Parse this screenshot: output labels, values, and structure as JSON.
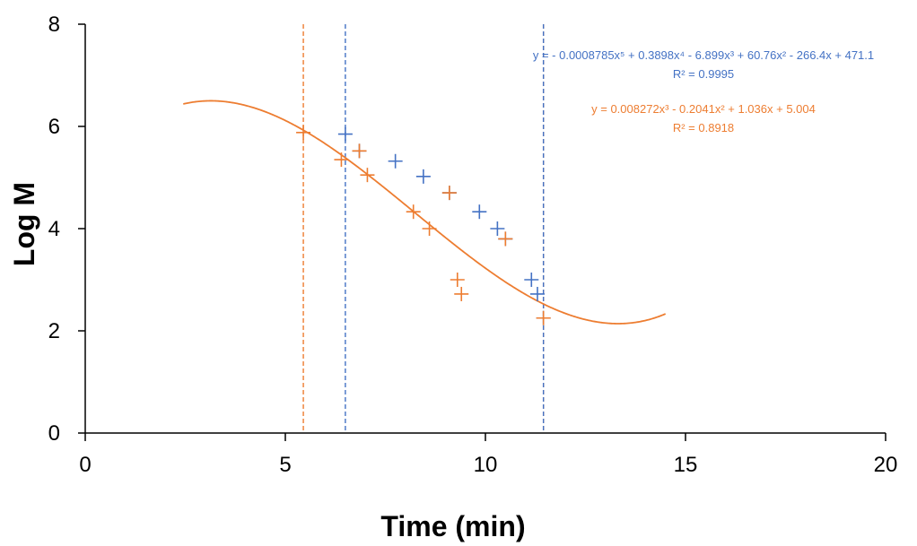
{
  "chart_data": {
    "type": "scatter",
    "xlabel": "Time (min)",
    "ylabel": "Log M",
    "xlim": [
      0,
      20
    ],
    "ylim": [
      0,
      8
    ],
    "xticks": [
      "0",
      "5",
      "10",
      "15",
      "20"
    ],
    "yticks": [
      "0",
      "2",
      "4",
      "6",
      "8"
    ],
    "grid": false,
    "series": [
      {
        "color": "#4472c4",
        "marker": "+",
        "x": [
          6.5,
          6.85,
          7.75,
          8.45,
          9.1,
          9.85,
          10.3,
          10.5,
          11.15,
          11.3,
          11.45
        ],
        "y": [
          5.85,
          5.52,
          5.32,
          5.02,
          4.7,
          4.33,
          4.0,
          3.8,
          3.0,
          2.72,
          2.25
        ],
        "trendline": {
          "kind": "polynomial",
          "coefficients": [
            -0.0008785,
            0.3898,
            -6.899,
            60.76,
            -266.4,
            471.1
          ],
          "equation": "y = - 0.0008785x⁵ + 0.3898x⁴ - 6.899x³ + 60.76x² - 266.4x + 471.1",
          "r2": "R² = 0.9995"
        }
      },
      {
        "color": "#ed7d31",
        "marker": "+",
        "x": [
          5.45,
          6.4,
          6.85,
          7.05,
          8.2,
          8.6,
          9.1,
          9.3,
          9.4,
          10.5,
          11.45
        ],
        "y": [
          5.88,
          5.35,
          5.52,
          5.05,
          4.33,
          4.0,
          4.7,
          3.0,
          2.72,
          3.8,
          2.25
        ],
        "trendline": {
          "kind": "polynomial",
          "coefficients": [
            0.008272,
            -0.2041,
            1.036,
            5.004
          ],
          "equation": "y = 0.008272x³ - 0.2041x² + 1.036x + 5.004",
          "r2": "R² = 0.8918"
        }
      }
    ],
    "vertical_lines": [
      {
        "x": 5.45,
        "color": "#ed7d31"
      },
      {
        "x": 6.5,
        "color": "#4472c4"
      },
      {
        "x": 11.45,
        "color": "#ed7d31"
      },
      {
        "x": 11.45,
        "color": "#4472c4"
      }
    ]
  }
}
